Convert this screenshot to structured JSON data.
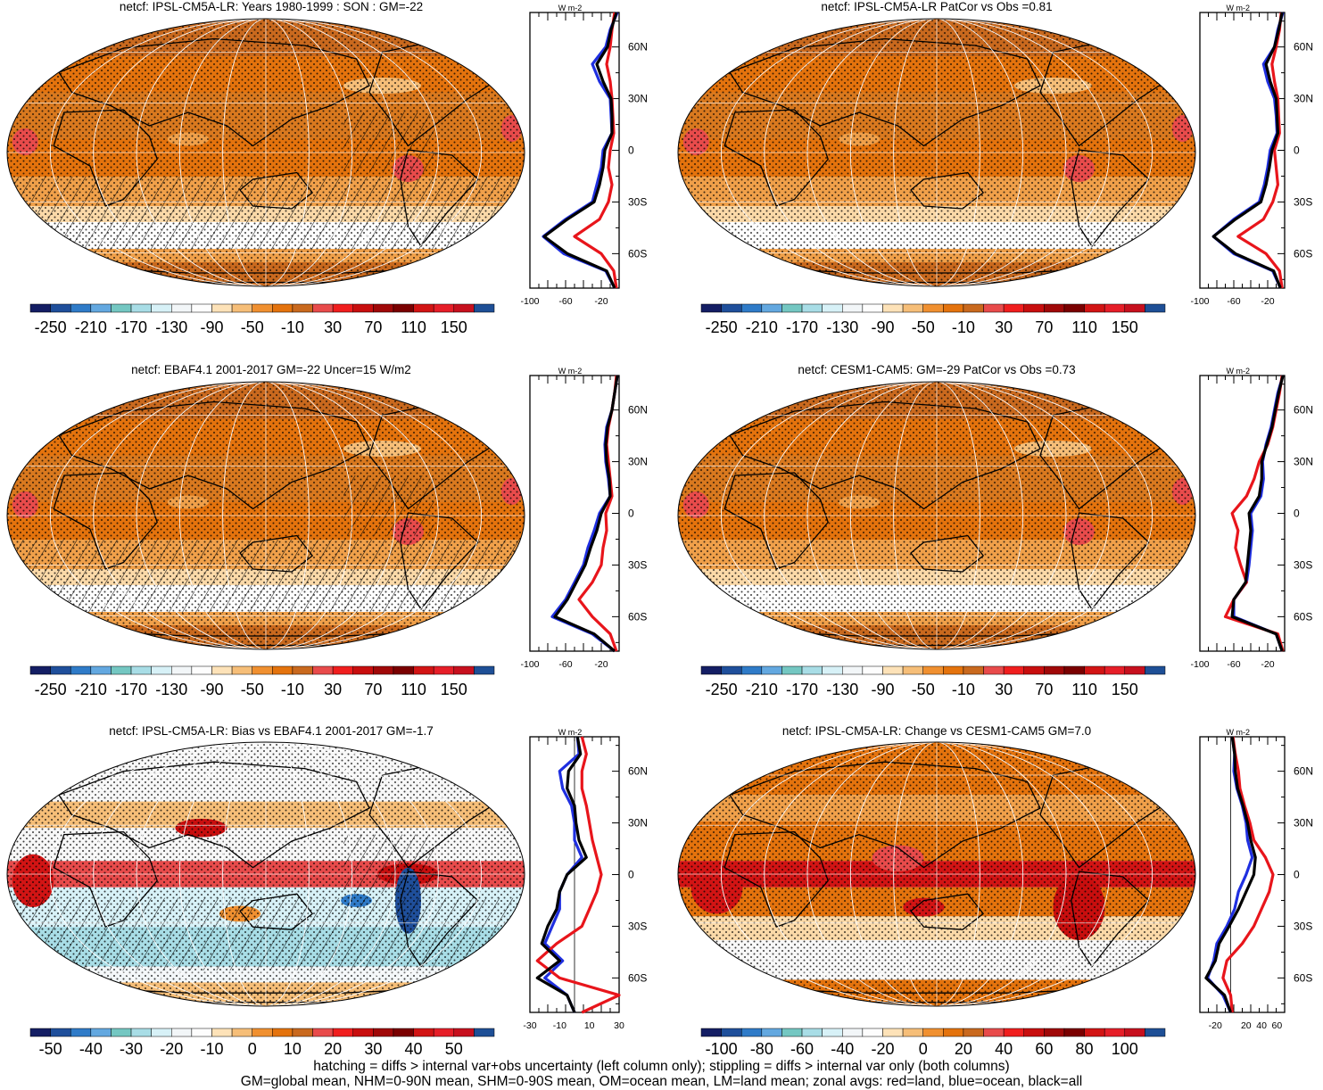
{
  "figure": {
    "caption_line1": "hatching = diffs > internal var+obs uncertainty (left column only); stippling = diffs > internal var only (both columns)",
    "caption_line2": "GM=global mean, NHM=0-90N mean, SHM=0-90S mean, OM=ocean mean, LM=land mean; zonal avgs: red=land, blue=ocean, black=all"
  },
  "colors": {
    "land": "#e8151b",
    "ocean": "#1f2fe0",
    "all": "#000000",
    "map_base": "#d9791f"
  },
  "scales": {
    "abs": {
      "labels": [
        "-250",
        "-210",
        "-170",
        "-130",
        "-90",
        "-50",
        "-10",
        "30",
        "70",
        "110",
        "150"
      ],
      "colors": [
        "#141e64",
        "#1f4f9b",
        "#2f7bc8",
        "#63a8e0",
        "#74c7c2",
        "#a8dde6",
        "#d7f1f7",
        "#f2f6f8",
        "#fdfdfd",
        "#fde2b8",
        "#f6be78",
        "#f09030",
        "#e4730d",
        "#c9691e",
        "#e84b4b",
        "#f01e1e",
        "#c80e0e",
        "#a00808",
        "#7a0000",
        "#d21414",
        "#e61e28",
        "#c7101e",
        "#1e4f96"
      ]
    },
    "bias": {
      "labels": [
        "-50",
        "-40",
        "-30",
        "-20",
        "-10",
        "0",
        "10",
        "20",
        "30",
        "40",
        "50"
      ],
      "colors": [
        "#141e64",
        "#1f4f9b",
        "#2f7bc8",
        "#63a8e0",
        "#74c7c2",
        "#a8dde6",
        "#d7f1f7",
        "#f2f6f8",
        "#fdfdfd",
        "#fde2b8",
        "#f6be78",
        "#f09030",
        "#e4730d",
        "#c9691e",
        "#e84b4b",
        "#f01e1e",
        "#c80e0e",
        "#a00808",
        "#7a0000",
        "#d21414",
        "#e61e28",
        "#c7101e",
        "#1e4f96"
      ]
    },
    "change": {
      "labels": [
        "-100",
        "-80",
        "-60",
        "-40",
        "-20",
        "0",
        "20",
        "40",
        "60",
        "80",
        "100"
      ],
      "colors": [
        "#141e64",
        "#1f4f9b",
        "#2f7bc8",
        "#63a8e0",
        "#74c7c2",
        "#a8dde6",
        "#d7f1f7",
        "#f2f6f8",
        "#fdfdfd",
        "#fde2b8",
        "#f6be78",
        "#f09030",
        "#e4730d",
        "#c9691e",
        "#e84b4b",
        "#f01e1e",
        "#c80e0e",
        "#a00808",
        "#7a0000",
        "#d21414",
        "#e61e28",
        "#c7101e",
        "#1e4f96"
      ]
    }
  },
  "chart_data": [
    {
      "type": "heatmap",
      "title": "netcf: IPSL-CM5A-LR: Years 1980-1999 : SON : GM=-22",
      "colorbar": "abs",
      "hatching": true,
      "stippling": true,
      "zonal_profile": {
        "units": "W m-2",
        "xticks": [
          -100,
          -60,
          -20
        ],
        "xlim": [
          -100,
          0
        ],
        "lat_labels": [
          "60N",
          "30N",
          "0",
          "30S",
          "60S"
        ],
        "lat_ticks": [
          60,
          30,
          0,
          -30,
          -60
        ],
        "ylim": [
          -80,
          80
        ],
        "lat": [
          80,
          70,
          60,
          50,
          40,
          30,
          20,
          10,
          0,
          -10,
          -20,
          -30,
          -40,
          -50,
          -60,
          -70,
          -80
        ],
        "series": [
          {
            "name": "ocean",
            "color": "ocean",
            "values": [
              -2,
              -10,
              -15,
              -30,
              -22,
              -10,
              -9,
              -8,
              -18,
              -20,
              -25,
              -30,
              -60,
              -85,
              -62,
              -15,
              -5
            ]
          },
          {
            "name": "land",
            "color": "land",
            "values": [
              -5,
              -8,
              -10,
              -14,
              -10,
              -8,
              -7,
              -6,
              -10,
              -12,
              -8,
              -12,
              -22,
              -50,
              -20,
              -6,
              -3
            ]
          },
          {
            "name": "all",
            "color": "all",
            "values": [
              -3,
              -9,
              -13,
              -25,
              -18,
              -9,
              -8,
              -8,
              -16,
              -18,
              -22,
              -28,
              -58,
              -84,
              -58,
              -14,
              -5
            ]
          }
        ]
      }
    },
    {
      "type": "heatmap",
      "title": "netcf: IPSL-CM5A-LR PatCor vs Obs =0.81",
      "colorbar": "abs",
      "hatching": false,
      "stippling": true,
      "zonal_profile": {
        "units": "W m-2",
        "xticks": [
          -100,
          -60,
          -20
        ],
        "xlim": [
          -100,
          0
        ],
        "lat_labels": [
          "60N",
          "30N",
          "0",
          "30S",
          "60S"
        ],
        "lat_ticks": [
          60,
          30,
          0,
          -30,
          -60
        ],
        "ylim": [
          -80,
          80
        ],
        "lat": [
          80,
          70,
          60,
          50,
          40,
          30,
          20,
          10,
          0,
          -10,
          -20,
          -30,
          -40,
          -50,
          -60,
          -70,
          -80
        ],
        "series": [
          {
            "name": "ocean",
            "color": "ocean",
            "values": [
              -2,
              -8,
              -12,
              -25,
              -20,
              -12,
              -10,
              -9,
              -17,
              -20,
              -24,
              -30,
              -60,
              -84,
              -60,
              -14,
              -5
            ]
          },
          {
            "name": "land",
            "color": "land",
            "values": [
              -4,
              -6,
              -10,
              -15,
              -12,
              -8,
              -7,
              -6,
              -12,
              -10,
              -8,
              -14,
              -25,
              -55,
              -22,
              -6,
              -3
            ]
          },
          {
            "name": "all",
            "color": "all",
            "values": [
              -3,
              -7,
              -12,
              -22,
              -17,
              -10,
              -9,
              -8,
              -15,
              -18,
              -22,
              -28,
              -58,
              -84,
              -58,
              -13,
              -5
            ]
          }
        ]
      }
    },
    {
      "type": "heatmap",
      "title": "netcf: EBAF4.1 2001-2017 GM=-22 Uncer=15 W/m2",
      "colorbar": "abs",
      "hatching": true,
      "stippling": true,
      "zonal_profile": {
        "units": "W m-2",
        "xticks": [
          -100,
          -60,
          -20
        ],
        "xlim": [
          -100,
          0
        ],
        "lat_labels": [
          "60N",
          "30N",
          "0",
          "30S",
          "60S"
        ],
        "lat_ticks": [
          60,
          30,
          0,
          -30,
          -60
        ],
        "ylim": [
          -80,
          80
        ],
        "lat": [
          80,
          70,
          60,
          50,
          40,
          30,
          20,
          10,
          0,
          -10,
          -20,
          -30,
          -40,
          -50,
          -60,
          -70,
          -80
        ],
        "series": [
          {
            "name": "ocean",
            "color": "ocean",
            "values": [
              -2,
              -5,
              -8,
              -14,
              -16,
              -15,
              -12,
              -10,
              -22,
              -28,
              -35,
              -40,
              -50,
              -60,
              -75,
              -30,
              -5
            ]
          },
          {
            "name": "land",
            "color": "land",
            "values": [
              -3,
              -5,
              -8,
              -12,
              -14,
              -12,
              -10,
              -8,
              -15,
              -14,
              -18,
              -20,
              -30,
              -45,
              -30,
              -10,
              -3
            ]
          },
          {
            "name": "all",
            "color": "all",
            "values": [
              -2,
              -5,
              -8,
              -13,
              -15,
              -14,
              -11,
              -10,
              -20,
              -25,
              -32,
              -38,
              -48,
              -58,
              -72,
              -28,
              -5
            ]
          }
        ]
      }
    },
    {
      "type": "heatmap",
      "title": "netcf: CESM1-CAM5: GM=-29 PatCor vs Obs =0.73",
      "colorbar": "abs",
      "hatching": false,
      "stippling": true,
      "zonal_profile": {
        "units": "W m-2",
        "xticks": [
          -100,
          -60,
          -20
        ],
        "xlim": [
          -100,
          0
        ],
        "lat_labels": [
          "60N",
          "30N",
          "0",
          "30S",
          "60S"
        ],
        "lat_ticks": [
          60,
          30,
          0,
          -30,
          -60
        ],
        "ylim": [
          -80,
          80
        ],
        "lat": [
          80,
          70,
          60,
          50,
          40,
          30,
          20,
          10,
          0,
          -10,
          -20,
          -30,
          -40,
          -50,
          -60,
          -70,
          -80
        ],
        "series": [
          {
            "name": "ocean",
            "color": "ocean",
            "values": [
              -2,
              -8,
              -12,
              -16,
              -22,
              -26,
              -25,
              -28,
              -40,
              -38,
              -40,
              -42,
              -45,
              -60,
              -60,
              -10,
              -3
            ]
          },
          {
            "name": "land",
            "color": "land",
            "values": [
              -3,
              -6,
              -10,
              -14,
              -20,
              -30,
              -36,
              -45,
              -62,
              -55,
              -58,
              -52,
              -45,
              -60,
              -70,
              -8,
              -2
            ]
          },
          {
            "name": "all",
            "color": "all",
            "values": [
              -2,
              -7,
              -11,
              -15,
              -21,
              -27,
              -27,
              -30,
              -42,
              -40,
              -42,
              -44,
              -46,
              -60,
              -62,
              -10,
              -3
            ]
          }
        ]
      }
    },
    {
      "type": "heatmap",
      "title": "netcf: IPSL-CM5A-LR: Bias vs EBAF4.1 2001-2017  GM=-1.7",
      "colorbar": "bias",
      "hatching": true,
      "stippling": true,
      "zonal_profile": {
        "units": "W m-2",
        "xticks": [
          -30,
          -10,
          10,
          30
        ],
        "xlim": [
          -30,
          30
        ],
        "lat_labels": [
          "60N",
          "30N",
          "0",
          "30S",
          "60S"
        ],
        "lat_ticks": [
          60,
          30,
          0,
          -30,
          -60
        ],
        "ylim": [
          -80,
          80
        ],
        "lat": [
          80,
          70,
          60,
          50,
          40,
          30,
          20,
          10,
          0,
          -10,
          -20,
          -30,
          -40,
          -50,
          -60,
          -70,
          -80
        ],
        "series": [
          {
            "name": "ocean",
            "color": "ocean",
            "values": [
              2,
              3,
              -10,
              -8,
              -2,
              0,
              0,
              5,
              -5,
              -10,
              -10,
              -15,
              -20,
              -8,
              -20,
              -5,
              0
            ]
          },
          {
            "name": "land",
            "color": "land",
            "values": [
              5,
              8,
              5,
              5,
              8,
              10,
              12,
              15,
              18,
              15,
              10,
              5,
              -12,
              -25,
              -10,
              30,
              5
            ]
          },
          {
            "name": "all",
            "color": "all",
            "values": [
              2,
              4,
              -4,
              -5,
              0,
              1,
              3,
              8,
              -5,
              -10,
              -12,
              -18,
              -22,
              -10,
              -25,
              -5,
              0
            ]
          }
        ]
      }
    },
    {
      "type": "heatmap",
      "title": "netcf: IPSL-CM5A-LR: Change vs CESM1-CAM5 GM=7.0",
      "colorbar": "change",
      "hatching": false,
      "stippling": true,
      "zonal_profile": {
        "units": "W m-2",
        "xticks": [
          -20,
          20,
          40,
          60
        ],
        "xlim": [
          -40,
          70
        ],
        "lat_labels": [
          "60N",
          "30N",
          "0",
          "30S",
          "60S"
        ],
        "lat_ticks": [
          60,
          30,
          0,
          -30,
          -60
        ],
        "ylim": [
          -80,
          80
        ],
        "lat": [
          80,
          70,
          60,
          50,
          40,
          30,
          20,
          10,
          0,
          -10,
          -20,
          -30,
          -40,
          -50,
          -60,
          -70,
          -80
        ],
        "series": [
          {
            "name": "ocean",
            "color": "ocean",
            "values": [
              2,
              5,
              4,
              8,
              15,
              20,
              22,
              28,
              20,
              10,
              5,
              -5,
              -18,
              -22,
              -30,
              -10,
              0
            ]
          },
          {
            "name": "land",
            "color": "land",
            "values": [
              3,
              6,
              10,
              12,
              18,
              25,
              30,
              45,
              55,
              50,
              40,
              30,
              15,
              -5,
              -10,
              0,
              2
            ]
          },
          {
            "name": "all",
            "color": "all",
            "values": [
              2,
              5,
              6,
              9,
              16,
              22,
              26,
              32,
              30,
              20,
              10,
              -2,
              -15,
              -20,
              -32,
              -8,
              0
            ]
          }
        ]
      }
    }
  ]
}
